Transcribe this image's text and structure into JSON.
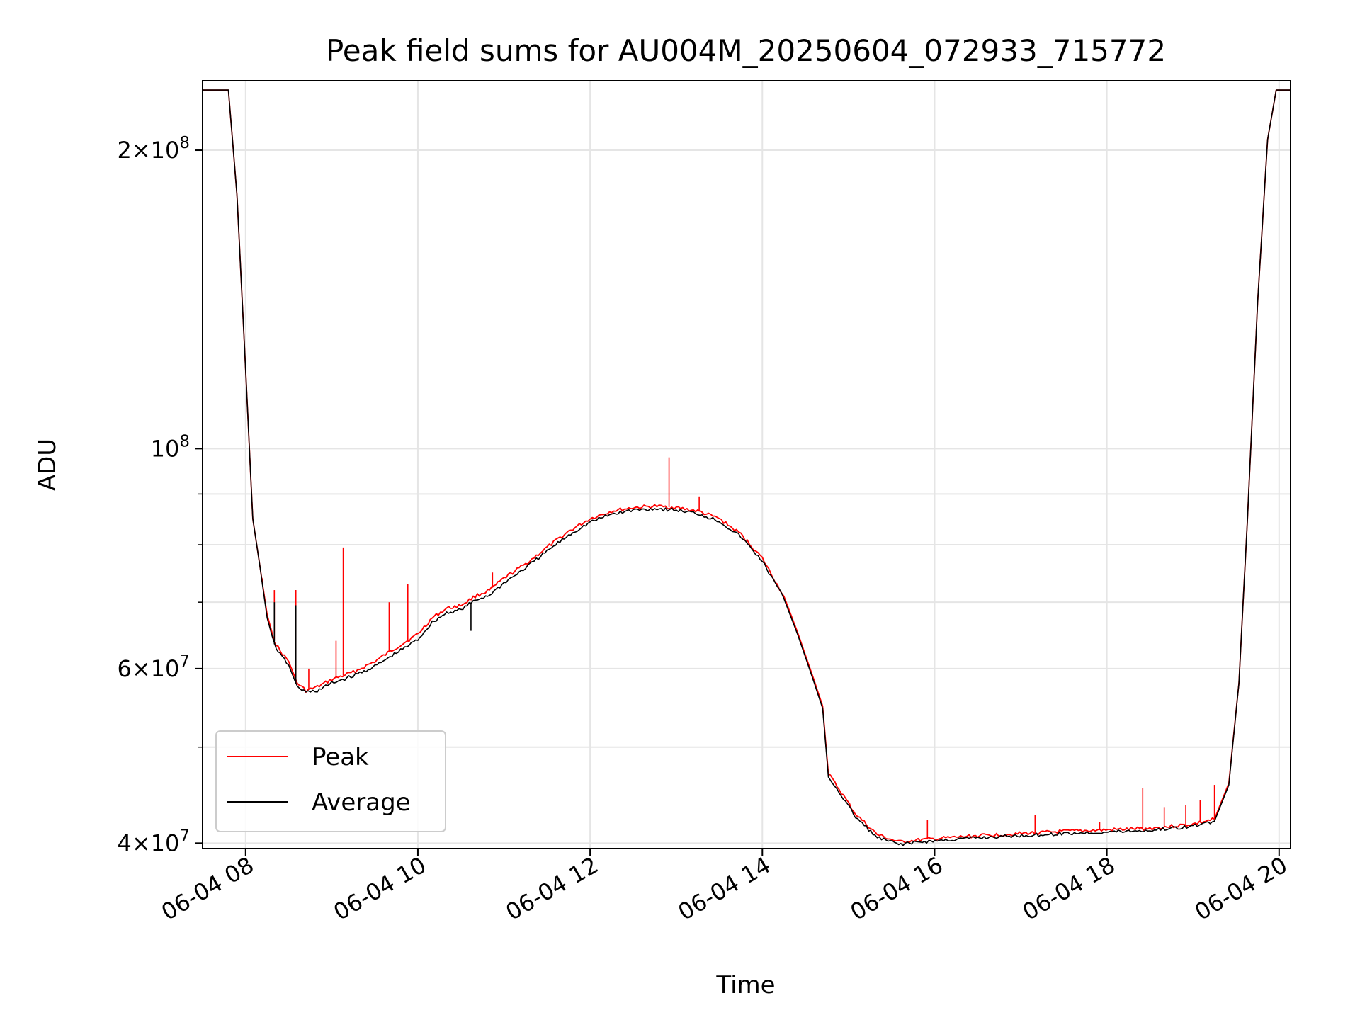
{
  "chart_data": {
    "type": "line",
    "title": "Peak field sums for AU004M_20250604_072933_715772",
    "xlabel": "Time",
    "ylabel": "ADU",
    "x_is_time": true,
    "xlim": [
      "06-04 07:30",
      "06-04 20:08"
    ],
    "ylim": [
      39500000,
      235000000
    ],
    "y_scale": "log",
    "grid": true,
    "legend_position": "lower-left",
    "x_ticks": [
      {
        "value": "06-04 08:00",
        "label": "06-04 08"
      },
      {
        "value": "06-04 10:00",
        "label": "06-04 10"
      },
      {
        "value": "06-04 12:00",
        "label": "06-04 12"
      },
      {
        "value": "06-04 14:00",
        "label": "06-04 14"
      },
      {
        "value": "06-04 16:00",
        "label": "06-04 16"
      },
      {
        "value": "06-04 18:00",
        "label": "06-04 18"
      },
      {
        "value": "06-04 20:00",
        "label": "06-04 20"
      }
    ],
    "y_ticks": [
      {
        "value": 200000000,
        "base": "2",
        "mult": "×",
        "pow": "10",
        "exp": "8"
      },
      {
        "value": 100000000,
        "base": "",
        "mult": "",
        "pow": "10",
        "exp": "8"
      },
      {
        "value": 60000000,
        "base": "6",
        "mult": "×",
        "pow": "10",
        "exp": "7"
      },
      {
        "value": 40000000,
        "base": "4",
        "mult": "×",
        "pow": "10",
        "exp": "7"
      }
    ],
    "y_minor_ticks": [
      50000000,
      70000000,
      80000000,
      90000000
    ],
    "series": [
      {
        "name": "Peak",
        "color": "#ff0000",
        "points": [
          [
            "06-04 07:30",
            230000000
          ],
          [
            "06-04 07:48",
            230000000
          ],
          [
            "06-04 07:54",
            180000000
          ],
          [
            "06-04 08:00",
            120000000
          ],
          [
            "06-04 08:05",
            85000000
          ],
          [
            "06-04 08:10",
            76000000
          ],
          [
            "06-04 08:15",
            68000000
          ],
          [
            "06-04 08:20",
            64000000
          ],
          [
            "06-04 08:24",
            62500000
          ],
          [
            "06-04 08:30",
            61000000
          ],
          [
            "06-04 08:36",
            58000000
          ],
          [
            "06-04 08:42",
            57000000
          ],
          [
            "06-04 08:50",
            57500000
          ],
          [
            "06-04 09:00",
            58500000
          ],
          [
            "06-04 09:15",
            59500000
          ],
          [
            "06-04 09:30",
            61000000
          ],
          [
            "06-04 09:45",
            63000000
          ],
          [
            "06-04 10:00",
            65000000
          ],
          [
            "06-04 10:10",
            67500000
          ],
          [
            "06-04 10:20",
            69000000
          ],
          [
            "06-04 10:30",
            69500000
          ],
          [
            "06-04 10:40",
            71000000
          ],
          [
            "06-04 10:50",
            72000000
          ],
          [
            "06-04 11:00",
            74000000
          ],
          [
            "06-04 11:15",
            76500000
          ],
          [
            "06-04 11:30",
            79500000
          ],
          [
            "06-04 11:45",
            82500000
          ],
          [
            "06-04 12:00",
            85000000
          ],
          [
            "06-04 12:15",
            86500000
          ],
          [
            "06-04 12:30",
            87200000
          ],
          [
            "06-04 12:45",
            87500000
          ],
          [
            "06-04 13:00",
            87200000
          ],
          [
            "06-04 13:15",
            86500000
          ],
          [
            "06-04 13:30",
            85000000
          ],
          [
            "06-04 13:45",
            82000000
          ],
          [
            "06-04 14:00",
            77500000
          ],
          [
            "06-04 14:15",
            71000000
          ],
          [
            "06-04 14:25",
            65000000
          ],
          [
            "06-04 14:35",
            59000000
          ],
          [
            "06-04 14:42",
            55000000
          ],
          [
            "06-04 14:46",
            47000000
          ],
          [
            "06-04 14:55",
            45000000
          ],
          [
            "06-04 15:05",
            42800000
          ],
          [
            "06-04 15:20",
            40800000
          ],
          [
            "06-04 15:35",
            40100000
          ],
          [
            "06-04 15:50",
            40300000
          ],
          [
            "06-04 16:30",
            40700000
          ],
          [
            "06-04 17:30",
            41100000
          ],
          [
            "06-04 18:30",
            41400000
          ],
          [
            "06-04 19:00",
            41800000
          ],
          [
            "06-04 19:15",
            42300000
          ],
          [
            "06-04 19:25",
            46000000
          ],
          [
            "06-04 19:32",
            58000000
          ],
          [
            "06-04 19:38",
            85000000
          ],
          [
            "06-04 19:45",
            140000000
          ],
          [
            "06-04 19:52",
            205000000
          ],
          [
            "06-04 19:58",
            230000000
          ],
          [
            "06-04 20:08",
            230000000
          ]
        ],
        "spikes": [
          [
            "06-04 08:02",
            107000000
          ],
          [
            "06-04 08:12",
            74000000
          ],
          [
            "06-04 08:20",
            72000000
          ],
          [
            "06-04 08:35",
            72000000
          ],
          [
            "06-04 08:44",
            60000000
          ],
          [
            "06-04 09:03",
            64000000
          ],
          [
            "06-04 09:08",
            79500000
          ],
          [
            "06-04 09:40",
            70000000
          ],
          [
            "06-04 09:53",
            73000000
          ],
          [
            "06-04 10:52",
            75000000
          ],
          [
            "06-04 12:55",
            98000000
          ],
          [
            "06-04 13:16",
            89500000
          ],
          [
            "06-04 15:55",
            42200000
          ],
          [
            "06-04 17:10",
            42700000
          ],
          [
            "06-04 17:55",
            42000000
          ],
          [
            "06-04 18:25",
            45500000
          ],
          [
            "06-04 18:40",
            43500000
          ],
          [
            "06-04 18:55",
            43700000
          ],
          [
            "06-04 19:05",
            44200000
          ],
          [
            "06-04 19:15",
            45800000
          ]
        ]
      },
      {
        "name": "Average",
        "color": "#000000",
        "points": [
          [
            "06-04 07:30",
            230000000
          ],
          [
            "06-04 07:48",
            230000000
          ],
          [
            "06-04 07:54",
            180000000
          ],
          [
            "06-04 08:00",
            120000000
          ],
          [
            "06-04 08:05",
            85000000
          ],
          [
            "06-04 08:10",
            76000000
          ],
          [
            "06-04 08:15",
            67500000
          ],
          [
            "06-04 08:20",
            63500000
          ],
          [
            "06-04 08:24",
            62000000
          ],
          [
            "06-04 08:30",
            60500000
          ],
          [
            "06-04 08:36",
            57500000
          ],
          [
            "06-04 08:42",
            56800000
          ],
          [
            "06-04 08:50",
            57000000
          ],
          [
            "06-04 09:00",
            58000000
          ],
          [
            "06-04 09:15",
            59000000
          ],
          [
            "06-04 09:30",
            60300000
          ],
          [
            "06-04 09:45",
            62200000
          ],
          [
            "06-04 10:00",
            64200000
          ],
          [
            "06-04 10:10",
            66800000
          ],
          [
            "06-04 10:20",
            68300000
          ],
          [
            "06-04 10:30",
            68800000
          ],
          [
            "06-04 10:40",
            70300000
          ],
          [
            "06-04 10:50",
            71200000
          ],
          [
            "06-04 11:00",
            73200000
          ],
          [
            "06-04 11:15",
            75800000
          ],
          [
            "06-04 11:30",
            78800000
          ],
          [
            "06-04 11:45",
            81800000
          ],
          [
            "06-04 12:00",
            84300000
          ],
          [
            "06-04 12:15",
            85900000
          ],
          [
            "06-04 12:30",
            86700000
          ],
          [
            "06-04 12:45",
            87000000
          ],
          [
            "06-04 13:00",
            86700000
          ],
          [
            "06-04 13:15",
            86000000
          ],
          [
            "06-04 13:30",
            84500000
          ],
          [
            "06-04 13:45",
            81500000
          ],
          [
            "06-04 14:00",
            77000000
          ],
          [
            "06-04 14:15",
            70600000
          ],
          [
            "06-04 14:25",
            64700000
          ],
          [
            "06-04 14:35",
            58700000
          ],
          [
            "06-04 14:42",
            54700000
          ],
          [
            "06-04 14:46",
            46700000
          ],
          [
            "06-04 14:55",
            44700000
          ],
          [
            "06-04 15:05",
            42500000
          ],
          [
            "06-04 15:20",
            40500000
          ],
          [
            "06-04 15:35",
            39900000
          ],
          [
            "06-04 15:50",
            40100000
          ],
          [
            "06-04 16:30",
            40500000
          ],
          [
            "06-04 17:30",
            40900000
          ],
          [
            "06-04 18:30",
            41200000
          ],
          [
            "06-04 19:00",
            41600000
          ],
          [
            "06-04 19:15",
            42100000
          ],
          [
            "06-04 19:25",
            45800000
          ],
          [
            "06-04 19:32",
            58000000
          ],
          [
            "06-04 19:38",
            85000000
          ],
          [
            "06-04 19:45",
            140000000
          ],
          [
            "06-04 19:52",
            205000000
          ],
          [
            "06-04 19:58",
            230000000
          ],
          [
            "06-04 20:08",
            230000000
          ]
        ],
        "spikes": [
          [
            "06-04 08:02",
            104000000
          ],
          [
            "06-04 08:20",
            70000000
          ],
          [
            "06-04 08:35",
            69500000
          ],
          [
            "06-04 10:37",
            65500000
          ]
        ]
      }
    ]
  }
}
